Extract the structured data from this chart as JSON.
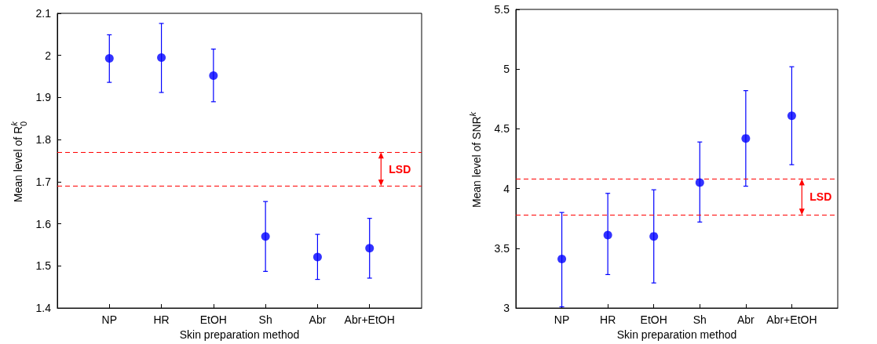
{
  "chart_data": [
    {
      "type": "scatter",
      "xlabel": "Skin preparation method",
      "ylabel": "Mean level of R$_{0}$$^{k}$",
      "categories": [
        null,
        "NP",
        "HR",
        "EtOH",
        "Sh",
        "Abr",
        "Abr+EtOH",
        null
      ],
      "series": [
        {
          "color": "#0000ff",
          "values": [
            null,
            1.993,
            1.995,
            1.952,
            1.57,
            1.521,
            1.542,
            null
          ],
          "errors": [
            null,
            [
              1.936,
              2.049
            ],
            [
              1.912,
              2.076
            ],
            [
              1.89,
              2.015
            ],
            [
              1.487,
              1.653
            ],
            [
              1.468,
              1.575
            ],
            [
              1.471,
              1.613
            ],
            null
          ]
        }
      ],
      "marker": "circle",
      "ylim": [
        1.4,
        2.1
      ],
      "yticks": [
        1.4,
        1.5,
        1.6,
        1.7,
        1.8,
        1.9,
        2,
        2.1
      ],
      "ref_lines": [
        {
          "axis": "y",
          "value": 1.77,
          "color": "#ff0000",
          "line_style": "dashed"
        },
        {
          "axis": "y",
          "value": 1.69,
          "color": "#ff0000",
          "line_style": "dashed"
        }
      ],
      "annotations": [
        "LSD"
      ]
    },
    {
      "type": "scatter",
      "xlabel": "Skin preparation method",
      "ylabel": "Mean level of SNR$^{k}$",
      "categories": [
        null,
        "NP",
        "HR",
        "EtOH",
        "Sh",
        "Abr",
        "Abr+EtOH",
        null
      ],
      "series": [
        {
          "color": "#0000ff",
          "values": [
            null,
            3.41,
            3.61,
            3.6,
            4.05,
            4.42,
            4.61,
            null
          ],
          "errors": [
            null,
            [
              3.01,
              3.8
            ],
            [
              3.28,
              3.96
            ],
            [
              3.21,
              3.99
            ],
            [
              3.72,
              4.39
            ],
            [
              4.02,
              4.82
            ],
            [
              4.2,
              5.02
            ],
            null
          ]
        }
      ],
      "marker": "circle",
      "ylim": [
        3,
        5.5
      ],
      "yticks": [
        3,
        3.5,
        4,
        4.5,
        5,
        5.5
      ],
      "ref_lines": [
        {
          "axis": "y",
          "value": 4.08,
          "color": "#ff0000",
          "line_style": "dashed"
        },
        {
          "axis": "y",
          "value": 3.78,
          "color": "#ff0000",
          "line_style": "dashed"
        }
      ],
      "annotations": [
        "LSD"
      ]
    }
  ]
}
